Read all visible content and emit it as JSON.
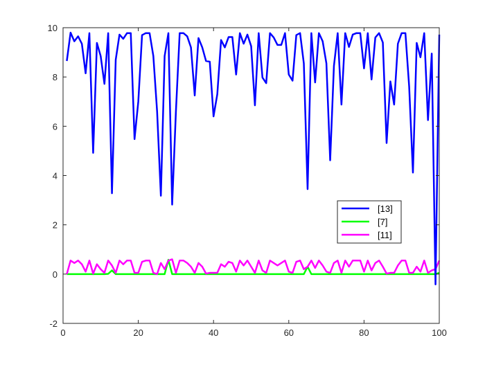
{
  "chart_data": {
    "type": "line",
    "title": "",
    "xlabel": "",
    "ylabel": "",
    "xlim": [
      0,
      100
    ],
    "ylim": [
      -2,
      10
    ],
    "xticks": [
      0,
      20,
      40,
      60,
      80,
      100
    ],
    "yticks": [
      -2,
      0,
      2,
      4,
      6,
      8,
      10
    ],
    "grid": false,
    "legend_position": "lower-right",
    "x": [
      1,
      2,
      3,
      4,
      5,
      6,
      7,
      8,
      9,
      10,
      11,
      12,
      13,
      14,
      15,
      16,
      17,
      18,
      19,
      20,
      21,
      22,
      23,
      24,
      25,
      26,
      27,
      28,
      29,
      30,
      31,
      32,
      33,
      34,
      35,
      36,
      37,
      38,
      39,
      40,
      41,
      42,
      43,
      44,
      45,
      46,
      47,
      48,
      49,
      50,
      51,
      52,
      53,
      54,
      55,
      56,
      57,
      58,
      59,
      60,
      61,
      62,
      63,
      64,
      65,
      66,
      67,
      68,
      69,
      70,
      71,
      72,
      73,
      74,
      75,
      76,
      77,
      78,
      79,
      80,
      81,
      82,
      83,
      84,
      85,
      86,
      87,
      88,
      89,
      90,
      91,
      92,
      93,
      94,
      95,
      96,
      97,
      98,
      99,
      100
    ],
    "series": [
      {
        "name": "[13]",
        "color": "#0000ff",
        "values": [
          8.65,
          9.8,
          9.45,
          9.65,
          9.35,
          8.15,
          9.78,
          4.92,
          9.38,
          8.85,
          7.72,
          9.78,
          3.28,
          8.7,
          9.72,
          9.55,
          9.78,
          9.78,
          5.48,
          7.0,
          9.7,
          9.78,
          9.78,
          8.85,
          6.6,
          3.18,
          8.85,
          9.78,
          2.82,
          6.6,
          9.78,
          9.78,
          9.65,
          9.2,
          7.25,
          9.58,
          9.2,
          8.65,
          8.62,
          6.4,
          7.3,
          9.5,
          9.2,
          9.62,
          9.62,
          8.1,
          9.78,
          9.35,
          9.72,
          9.25,
          6.85,
          9.78,
          7.98,
          7.75,
          9.78,
          9.6,
          9.3,
          9.3,
          9.78,
          8.1,
          7.85,
          9.7,
          9.78,
          8.55,
          3.45,
          9.78,
          7.78,
          9.78,
          9.45,
          8.55,
          4.62,
          8.45,
          9.78,
          6.88,
          9.78,
          9.22,
          9.72,
          9.78,
          9.78,
          8.35,
          9.78,
          7.9,
          9.6,
          9.78,
          9.4,
          5.32,
          7.82,
          6.88,
          9.35,
          9.78,
          9.78,
          7.6,
          4.12,
          9.38,
          8.8,
          9.78,
          6.25,
          8.95,
          -0.42,
          9.72
        ]
      },
      {
        "name": "[7]",
        "color": "#00ff00",
        "values": [
          0,
          0,
          0,
          0,
          0,
          0,
          0,
          0,
          0,
          0,
          0,
          0.01,
          0.15,
          0,
          0,
          0,
          0,
          0,
          0,
          0,
          0,
          0,
          0,
          0,
          0,
          0,
          0,
          0.58,
          0,
          0,
          0,
          0,
          0,
          0,
          0,
          0,
          0,
          0,
          0,
          0,
          0,
          0,
          0,
          0,
          0,
          0,
          0,
          0,
          0,
          0,
          0,
          0,
          0,
          0,
          0,
          0,
          0,
          0,
          0,
          0,
          0,
          0,
          0,
          0,
          0.3,
          0,
          0,
          0,
          0,
          0,
          0,
          0,
          0,
          0,
          0,
          0,
          0,
          0,
          0,
          0,
          0,
          0,
          0,
          0,
          0,
          0,
          0,
          0,
          0,
          0,
          0,
          0,
          0,
          0,
          0,
          0,
          0,
          0,
          0,
          0.05
        ]
      },
      {
        "name": "[11]",
        "color": "#ff00ff",
        "values": [
          0,
          0.55,
          0.45,
          0.55,
          0.4,
          0.1,
          0.55,
          0.02,
          0.4,
          0.2,
          0.05,
          0.55,
          0.35,
          0.05,
          0.55,
          0.4,
          0.55,
          0.55,
          0.05,
          0.05,
          0.5,
          0.55,
          0.55,
          0.05,
          0,
          0.45,
          0.2,
          0.55,
          0.6,
          0.05,
          0.55,
          0.55,
          0.45,
          0.3,
          0.05,
          0.45,
          0.3,
          0.02,
          0.05,
          0.05,
          0.05,
          0.4,
          0.3,
          0.5,
          0.45,
          0.1,
          0.55,
          0.35,
          0.55,
          0.3,
          0.05,
          0.55,
          0.15,
          0.05,
          0.55,
          0.45,
          0.35,
          0.45,
          0.55,
          0.1,
          0.05,
          0.5,
          0.55,
          0.2,
          0.3,
          0.55,
          0.25,
          0.55,
          0.35,
          0.1,
          0.05,
          0.45,
          0.55,
          0.05,
          0.55,
          0.3,
          0.55,
          0.55,
          0.55,
          0.1,
          0.55,
          0.15,
          0.45,
          0.55,
          0.3,
          0.02,
          0.05,
          0.05,
          0.35,
          0.55,
          0.55,
          0.05,
          0.05,
          0.3,
          0.1,
          0.55,
          0.05,
          0.15,
          0.2,
          0.55
        ]
      }
    ]
  }
}
